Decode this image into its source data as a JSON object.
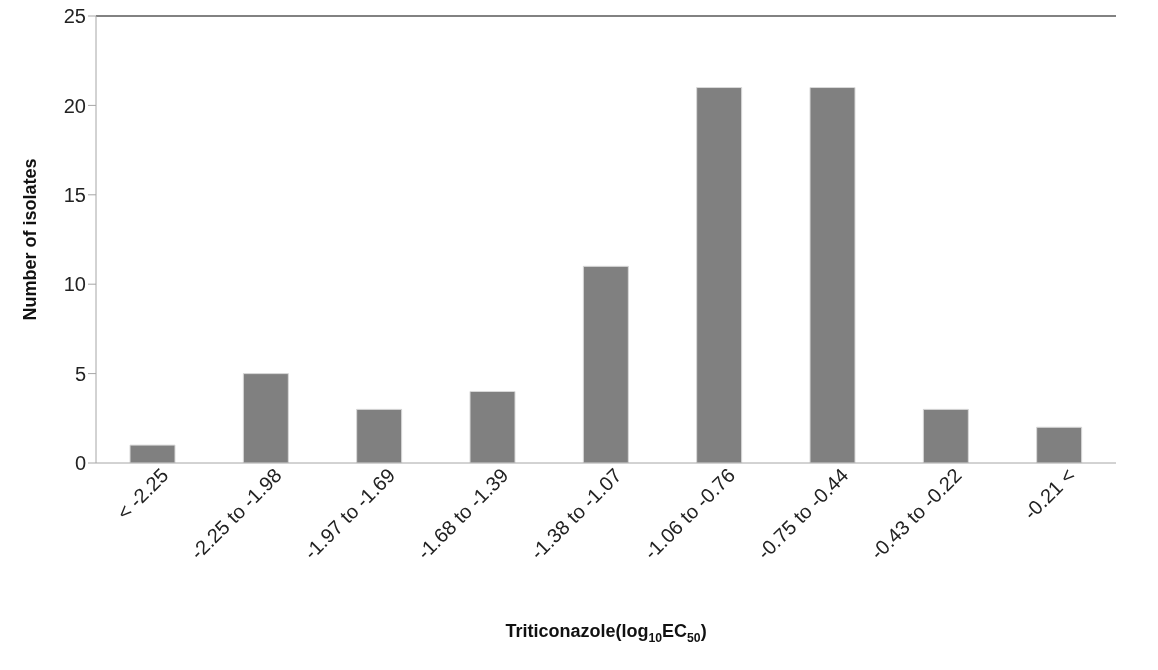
{
  "chart_data": {
    "type": "bar",
    "xlabel": "Triticonazole(log$_{10}$EC$_{50}$)",
    "ylabel": "Number of isolates",
    "categories": [
      "< -2.25",
      "-2.25 to -1.98",
      "-1.97 to -1.69",
      "-1.68 to -1.39",
      "-1.38 to -1.07",
      "-1.06 to -0.76",
      "-0.75 to -0.44",
      "-0.43 to -0.22",
      "-0.21 <"
    ],
    "values": [
      1,
      5,
      3,
      4,
      11,
      21,
      21,
      3,
      2
    ],
    "color": "#808080",
    "ylim": [
      0,
      25
    ],
    "yticks": [
      0,
      5,
      10,
      15,
      20,
      25
    ],
    "ref_lines": [
      {
        "axis": "y",
        "value": 25,
        "color": "#595959"
      }
    ]
  }
}
